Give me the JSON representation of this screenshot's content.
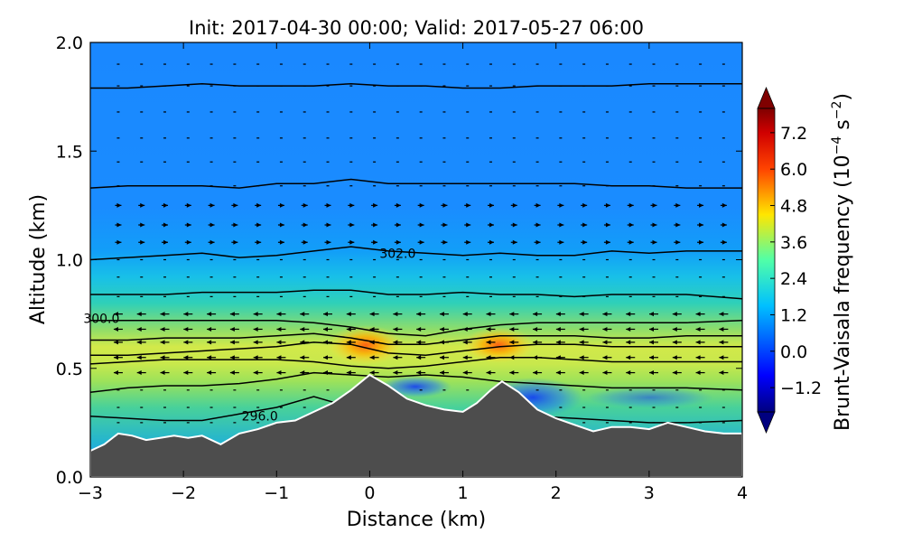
{
  "chart_data": {
    "type": "heatmap",
    "title": "Init: 2017-04-30 00:00; Valid: 2017-05-27 06:00",
    "xlabel": "Distance (km)",
    "ylabel": "Altitude (km)",
    "xlim": [
      -3,
      4
    ],
    "ylim": [
      0.0,
      2.0
    ],
    "x_ticks": [
      "−3",
      "−2",
      "−1",
      "0",
      "1",
      "2",
      "3",
      "4"
    ],
    "x_tick_values": [
      -3,
      -2,
      -1,
      0,
      1,
      2,
      3,
      4
    ],
    "y_ticks": [
      "0.0",
      "0.5",
      "1.0",
      "1.5",
      "2.0"
    ],
    "y_tick_values": [
      0.0,
      0.5,
      1.0,
      1.5,
      2.0
    ],
    "colorbar": {
      "label": "Brunt-Vaisala frequency (10",
      "label_exp": "−4",
      "label_mid": " s",
      "label_exp2": "−2",
      "label_end": ")",
      "ticks": [
        "7.2",
        "6.0",
        "4.8",
        "3.6",
        "2.4",
        "1.2",
        "0.0",
        "−1.2"
      ],
      "tick_values": [
        7.2,
        6.0,
        4.8,
        3.6,
        2.4,
        1.2,
        0.0,
        -1.2
      ],
      "min": -2.0,
      "max": 8.0,
      "extend": "both",
      "colormap": "jet"
    },
    "terrain": {
      "color": "#4d4d4d",
      "x": [
        -3.0,
        -2.85,
        -2.7,
        -2.55,
        -2.4,
        -2.25,
        -2.1,
        -1.95,
        -1.8,
        -1.6,
        -1.4,
        -1.2,
        -1.0,
        -0.8,
        -0.6,
        -0.4,
        -0.2,
        0.0,
        0.2,
        0.4,
        0.6,
        0.8,
        1.0,
        1.15,
        1.3,
        1.42,
        1.6,
        1.8,
        2.0,
        2.2,
        2.4,
        2.6,
        2.8,
        3.0,
        3.2,
        3.4,
        3.6,
        3.8,
        4.0
      ],
      "y": [
        0.12,
        0.15,
        0.2,
        0.19,
        0.17,
        0.18,
        0.19,
        0.18,
        0.19,
        0.15,
        0.2,
        0.22,
        0.25,
        0.26,
        0.3,
        0.34,
        0.4,
        0.47,
        0.42,
        0.36,
        0.33,
        0.31,
        0.3,
        0.34,
        0.4,
        0.44,
        0.39,
        0.31,
        0.27,
        0.24,
        0.21,
        0.23,
        0.23,
        0.22,
        0.25,
        0.23,
        0.21,
        0.2,
        0.2
      ]
    },
    "contours": {
      "variable": "potential temperature",
      "levels": [
        {
          "y": [
            0.28,
            0.27,
            0.26,
            0.26,
            0.29,
            0.32,
            0.37,
            0.32,
            0.28,
            0.31,
            0.3,
            0.29,
            0.28,
            0.27,
            0.26,
            0.25,
            0.25,
            0.26
          ]
        },
        {
          "y": [
            0.39,
            0.41,
            0.42,
            0.42,
            0.43,
            0.45,
            0.48,
            0.47,
            0.46,
            0.47,
            0.46,
            0.44,
            0.43,
            0.42,
            0.41,
            0.41,
            0.41,
            0.4
          ]
        },
        {
          "y": [
            0.52,
            0.53,
            0.54,
            0.54,
            0.54,
            0.54,
            0.53,
            0.51,
            0.5,
            0.51,
            0.53,
            0.55,
            0.55,
            0.54,
            0.53,
            0.53,
            0.53,
            0.53
          ]
        },
        {
          "y": [
            0.56,
            0.56,
            0.57,
            0.58,
            0.59,
            0.6,
            0.62,
            0.61,
            0.57,
            0.56,
            0.58,
            0.6,
            0.61,
            0.61,
            0.6,
            0.6,
            0.6,
            0.6
          ]
        },
        {
          "y": [
            0.63,
            0.63,
            0.64,
            0.64,
            0.64,
            0.65,
            0.66,
            0.64,
            0.61,
            0.61,
            0.63,
            0.65,
            0.65,
            0.65,
            0.64,
            0.64,
            0.65,
            0.65
          ]
        },
        {
          "y": [
            0.72,
            0.72,
            0.72,
            0.72,
            0.72,
            0.72,
            0.71,
            0.69,
            0.66,
            0.65,
            0.68,
            0.7,
            0.71,
            0.71,
            0.71,
            0.71,
            0.71,
            0.72
          ]
        },
        {
          "y": [
            0.84,
            0.84,
            0.84,
            0.85,
            0.85,
            0.85,
            0.86,
            0.86,
            0.84,
            0.84,
            0.85,
            0.84,
            0.84,
            0.83,
            0.84,
            0.84,
            0.84,
            0.82
          ]
        },
        {
          "y": [
            1.0,
            1.01,
            1.02,
            1.03,
            1.01,
            1.02,
            1.04,
            1.06,
            1.04,
            1.03,
            1.02,
            1.03,
            1.02,
            1.02,
            1.04,
            1.03,
            1.04,
            1.04
          ]
        },
        {
          "y": [
            1.33,
            1.34,
            1.34,
            1.34,
            1.33,
            1.35,
            1.35,
            1.37,
            1.35,
            1.35,
            1.35,
            1.35,
            1.35,
            1.35,
            1.34,
            1.34,
            1.33,
            1.33
          ]
        },
        {
          "y": [
            1.79,
            1.79,
            1.8,
            1.81,
            1.8,
            1.8,
            1.8,
            1.81,
            1.8,
            1.8,
            1.79,
            1.79,
            1.8,
            1.8,
            1.8,
            1.81,
            1.81,
            1.81
          ]
        }
      ],
      "x": [
        -3.0,
        -2.6,
        -2.2,
        -1.8,
        -1.4,
        -1.0,
        -0.6,
        -0.2,
        0.2,
        0.6,
        1.0,
        1.4,
        1.8,
        2.2,
        2.6,
        3.0,
        3.4,
        4.0
      ],
      "labels": [
        {
          "text": "302.0",
          "x": 0.3,
          "y": 1.03
        },
        {
          "text": "300.0",
          "x": -2.88,
          "y": 0.73
        },
        {
          "text": "296.0",
          "x": -1.18,
          "y": 0.28
        }
      ]
    },
    "grid": false,
    "vectors": "wind arrows (westward in 0.5–0.7 km layer, eastward above)"
  }
}
